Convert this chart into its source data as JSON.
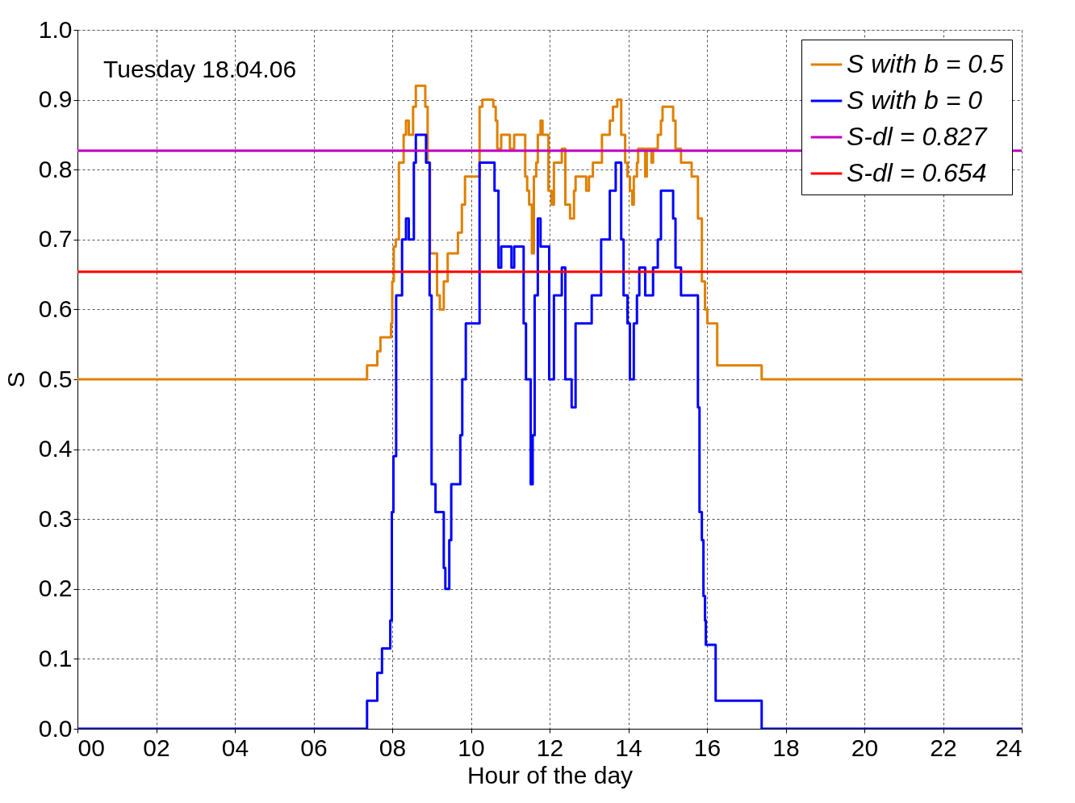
{
  "chart_data": {
    "type": "step",
    "xlabel": "Hour of the day",
    "ylabel": "S",
    "annotations": [
      "Tuesday 18.04.06"
    ],
    "xlim": [
      0,
      24
    ],
    "ylim": [
      0,
      1
    ],
    "xticks": [
      {
        "value": 0,
        "label": "00"
      },
      {
        "value": 2,
        "label": "02"
      },
      {
        "value": 4,
        "label": "04"
      },
      {
        "value": 6,
        "label": "06"
      },
      {
        "value": 8,
        "label": "08"
      },
      {
        "value": 10,
        "label": "10"
      },
      {
        "value": 12,
        "label": "12"
      },
      {
        "value": 14,
        "label": "14"
      },
      {
        "value": 16,
        "label": "16"
      },
      {
        "value": 18,
        "label": "18"
      },
      {
        "value": 20,
        "label": "20"
      },
      {
        "value": 22,
        "label": "22"
      },
      {
        "value": 24,
        "label": "24"
      }
    ],
    "yticks": [
      {
        "value": 0,
        "label": "0.0"
      },
      0.1,
      0.2,
      0.3,
      0.4,
      0.5,
      0.6,
      0.7,
      0.8,
      0.9,
      {
        "value": 1,
        "label": "1.0"
      }
    ],
    "grid": true,
    "legend": "top right",
    "series": [
      {
        "name": "S with b = 0.5",
        "color": "#e08000",
        "x": [
          0,
          7.36,
          7.62,
          7.7,
          7.97,
          8.0,
          8.04,
          8.09,
          8.17,
          8.29,
          8.35,
          8.42,
          8.53,
          8.6,
          8.84,
          8.9,
          8.96,
          9.14,
          9.21,
          9.31,
          9.41,
          9.67,
          9.77,
          9.85,
          10.22,
          10.29,
          10.57,
          10.63,
          10.67,
          10.77,
          10.99,
          11.1,
          11.38,
          11.43,
          11.48,
          11.55,
          11.6,
          11.66,
          11.7,
          11.77,
          11.82,
          11.97,
          12.05,
          12.11,
          12.31,
          12.4,
          12.52,
          12.62,
          12.66,
          12.93,
          13.0,
          13.1,
          13.33,
          13.53,
          13.61,
          13.72,
          13.82,
          13.92,
          13.98,
          14.04,
          14.1,
          14.14,
          14.22,
          14.25,
          14.43,
          14.47,
          14.59,
          14.63,
          14.73,
          14.75,
          14.83,
          14.87,
          15.14,
          15.2,
          15.34,
          15.61,
          15.77,
          15.87,
          15.95,
          16.01,
          16.26,
          17.39,
          24
        ],
        "values": [
          0.5,
          0.52,
          0.54,
          0.56,
          0.58,
          0.64,
          0.69,
          0.7,
          0.81,
          0.85,
          0.87,
          0.85,
          0.89,
          0.92,
          0.89,
          0.81,
          0.68,
          0.62,
          0.6,
          0.64,
          0.68,
          0.71,
          0.75,
          0.79,
          0.89,
          0.9,
          0.89,
          0.87,
          0.83,
          0.85,
          0.83,
          0.85,
          0.79,
          0.77,
          0.75,
          0.68,
          0.79,
          0.81,
          0.85,
          0.87,
          0.85,
          0.77,
          0.75,
          0.81,
          0.83,
          0.75,
          0.73,
          0.77,
          0.79,
          0.77,
          0.79,
          0.81,
          0.85,
          0.87,
          0.89,
          0.9,
          0.85,
          0.81,
          0.79,
          0.77,
          0.75,
          0.79,
          0.81,
          0.83,
          0.79,
          0.83,
          0.81,
          0.83,
          0.83,
          0.85,
          0.87,
          0.89,
          0.87,
          0.83,
          0.81,
          0.79,
          0.73,
          0.64,
          0.6,
          0.58,
          0.52,
          0.5,
          0.5
        ]
      },
      {
        "name": "S with b = 0",
        "color": "#0000ff",
        "x": [
          0,
          7.36,
          7.62,
          7.74,
          7.95,
          7.99,
          8.03,
          8.1,
          8.25,
          8.35,
          8.42,
          8.55,
          8.6,
          8.86,
          8.95,
          9.0,
          9.1,
          9.31,
          9.35,
          9.45,
          9.5,
          9.73,
          9.78,
          9.87,
          10.22,
          10.6,
          10.7,
          10.77,
          11.03,
          11.1,
          11.34,
          11.4,
          11.52,
          11.57,
          11.62,
          11.7,
          11.77,
          11.99,
          12.11,
          12.31,
          12.4,
          12.56,
          12.66,
          13.07,
          13.31,
          13.53,
          13.68,
          13.82,
          13.88,
          13.98,
          14.04,
          14.14,
          14.22,
          14.28,
          14.43,
          14.63,
          14.75,
          14.83,
          15.14,
          15.2,
          15.34,
          15.77,
          15.81,
          15.87,
          15.91,
          15.95,
          15.97,
          16.18,
          16.22,
          17.39,
          24
        ],
        "values": [
          0,
          0.04,
          0.08,
          0.115,
          0.155,
          0.31,
          0.39,
          0.62,
          0.7,
          0.73,
          0.7,
          0.81,
          0.85,
          0.81,
          0.62,
          0.35,
          0.31,
          0.23,
          0.2,
          0.27,
          0.35,
          0.42,
          0.5,
          0.58,
          0.81,
          0.77,
          0.66,
          0.69,
          0.66,
          0.69,
          0.58,
          0.5,
          0.35,
          0.42,
          0.62,
          0.73,
          0.69,
          0.5,
          0.62,
          0.66,
          0.5,
          0.46,
          0.58,
          0.62,
          0.7,
          0.77,
          0.81,
          0.7,
          0.62,
          0.58,
          0.5,
          0.58,
          0.62,
          0.66,
          0.62,
          0.66,
          0.7,
          0.77,
          0.73,
          0.66,
          0.62,
          0.46,
          0.31,
          0.27,
          0.19,
          0.155,
          0.12,
          0.12,
          0.04,
          0,
          0
        ]
      }
    ],
    "ref_lines": [
      {
        "axis": "y",
        "value": 0.827,
        "label": "S-dl = 0.827",
        "color": "#c000c0"
      },
      {
        "axis": "y",
        "value": 0.654,
        "label": "S-dl = 0.654",
        "color": "#ff0000"
      }
    ]
  }
}
